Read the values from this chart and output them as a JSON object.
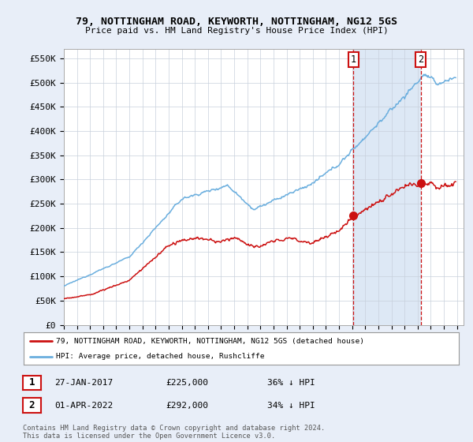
{
  "title": "79, NOTTINGHAM ROAD, KEYWORTH, NOTTINGHAM, NG12 5GS",
  "subtitle": "Price paid vs. HM Land Registry's House Price Index (HPI)",
  "ylabel_ticks": [
    "£0",
    "£50K",
    "£100K",
    "£150K",
    "£200K",
    "£250K",
    "£300K",
    "£350K",
    "£400K",
    "£450K",
    "£500K",
    "£550K"
  ],
  "ytick_values": [
    0,
    50000,
    100000,
    150000,
    200000,
    250000,
    300000,
    350000,
    400000,
    450000,
    500000,
    550000
  ],
  "ylim": [
    0,
    570000
  ],
  "xlim_start": 1995.0,
  "xlim_end": 2025.5,
  "hpi_color": "#6aaede",
  "price_color": "#cc1111",
  "shade_color": "#dde8f5",
  "marker1_date": 2017.08,
  "marker1_price": 225000,
  "marker2_date": 2022.25,
  "marker2_price": 292000,
  "legend_line1": "79, NOTTINGHAM ROAD, KEYWORTH, NOTTINGHAM, NG12 5GS (detached house)",
  "legend_line2": "HPI: Average price, detached house, Rushcliffe",
  "footer": "Contains HM Land Registry data © Crown copyright and database right 2024.\nThis data is licensed under the Open Government Licence v3.0.",
  "background_color": "#e8eef8",
  "plot_bg_color": "#ffffff",
  "grid_color": "#c8d0dc"
}
